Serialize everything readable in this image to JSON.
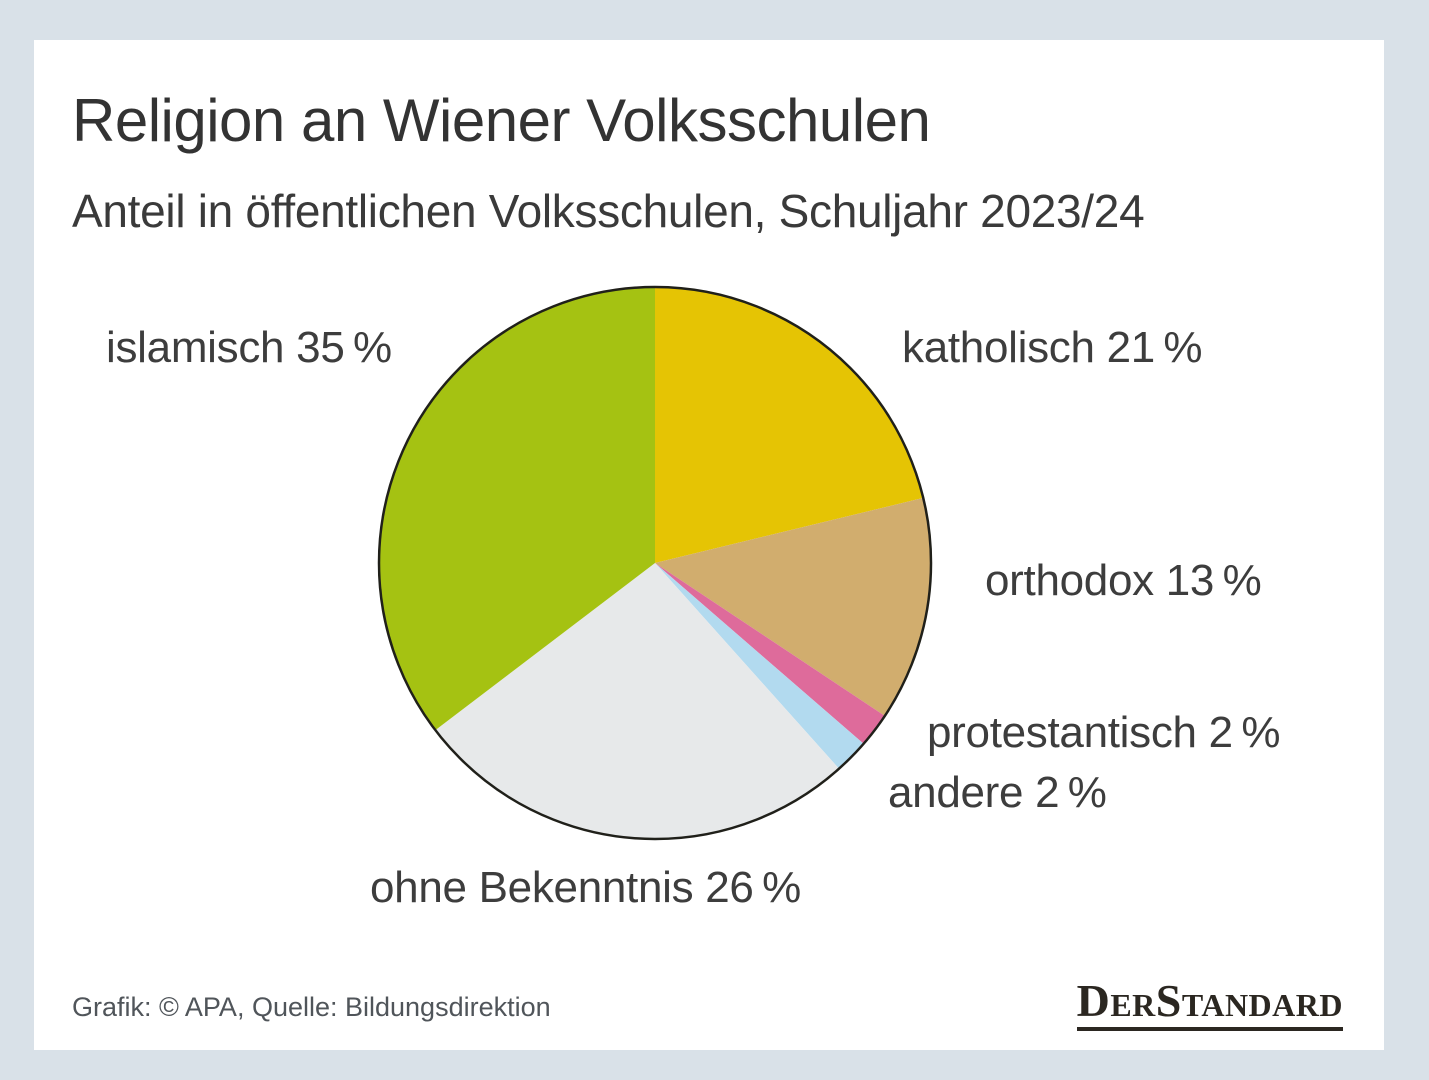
{
  "page": {
    "background": "#d9e1e8",
    "card_background": "#ffffff"
  },
  "header": {
    "title": "Religion an Wiener Volksschulen",
    "subtitle": "Anteil in öffentlichen Volksschulen, Schuljahr 2023/24"
  },
  "chart_data": {
    "type": "pie",
    "title": "Religion an Wiener Volksschulen",
    "subtitle": "Anteil in öffentlichen Volksschulen, Schuljahr 2023/24",
    "unit": "%",
    "start_angle_deg": 0,
    "direction": "clockwise",
    "outline_color": "#20201a",
    "slices": [
      {
        "label": "katholisch",
        "value": 21,
        "color": "#e5c404",
        "display": "katholisch 21 %"
      },
      {
        "label": "orthodox",
        "value": 13,
        "color": "#d1ad6e",
        "display": "orthodox 13 %"
      },
      {
        "label": "protestantisch",
        "value": 2,
        "color": "#de6b9b",
        "display": "protestantisch 2 %"
      },
      {
        "label": "andere",
        "value": 2,
        "color": "#b2daef",
        "display": "andere 2 %"
      },
      {
        "label": "ohne Bekenntnis",
        "value": 26,
        "color": "#e7e9ea",
        "display": "ohne Bekenntnis 26 %"
      },
      {
        "label": "islamisch",
        "value": 35,
        "color": "#a5c212",
        "display": "islamisch 35 %"
      }
    ]
  },
  "footer": {
    "credit": "Grafik: © APA, Quelle: Bildungsdirektion",
    "logo": "DerStandard"
  }
}
